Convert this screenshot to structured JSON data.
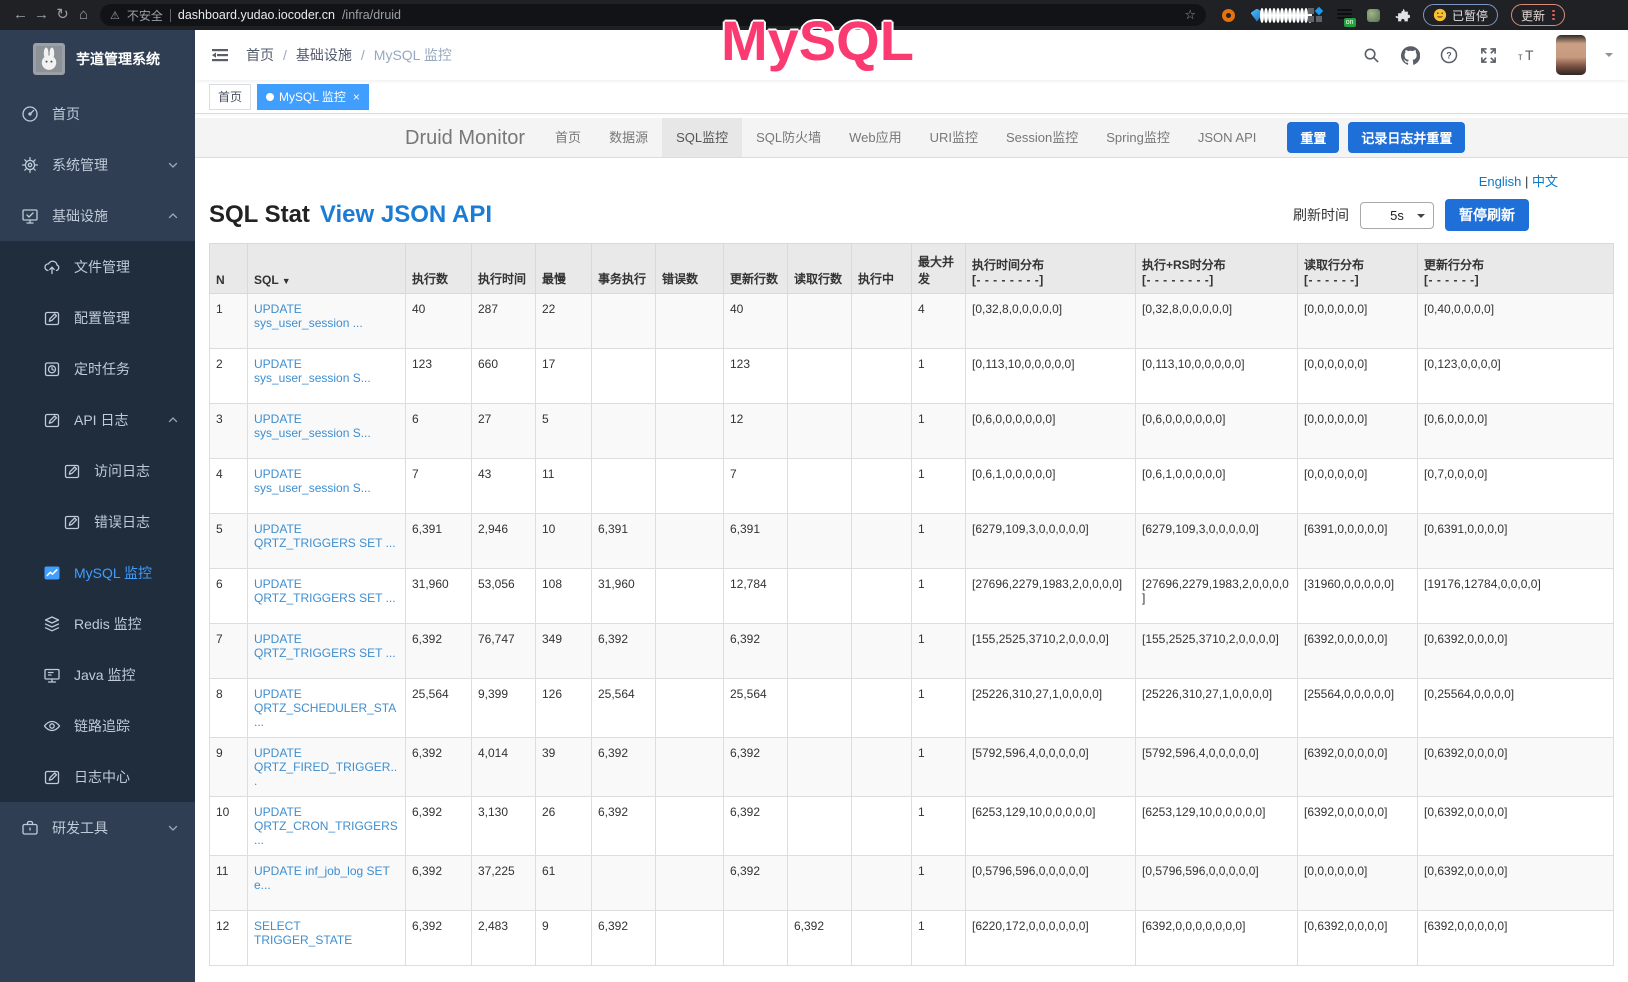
{
  "browser": {
    "security_label": "不安全",
    "url_host": "dashboard.yudao.iocoder.cn",
    "url_path": "/infra/druid",
    "paused_badge": "已暂停",
    "update_button": "更新"
  },
  "annotation": {
    "text": "MySQL",
    "color": "#fb3a72"
  },
  "sidebar": {
    "logo_title": "芋道管理系统",
    "items": [
      {
        "key": "home",
        "label": "首页",
        "icon": "dashboard-icon",
        "level": 0,
        "section": "light"
      },
      {
        "key": "system-management",
        "label": "系统管理",
        "icon": "gear-icon",
        "level": 0,
        "chevron": "down",
        "section": "light"
      },
      {
        "key": "infrastructure",
        "label": "基础设施",
        "icon": "monitor-check-icon",
        "level": 0,
        "chevron": "up",
        "section": "light"
      },
      {
        "key": "file-management",
        "label": "文件管理",
        "icon": "cloud-upload-icon",
        "level": 1,
        "section": "dark"
      },
      {
        "key": "config-management",
        "label": "配置管理",
        "icon": "edit-icon",
        "level": 1,
        "section": "dark"
      },
      {
        "key": "scheduled-jobs",
        "label": "定时任务",
        "icon": "timer-icon",
        "level": 1,
        "section": "dark"
      },
      {
        "key": "api-logs",
        "label": "API 日志",
        "icon": "edit-icon",
        "level": 1,
        "chevron": "up",
        "section": "dark"
      },
      {
        "key": "access-log",
        "label": "访问日志",
        "icon": "edit-icon",
        "level": 2,
        "section": "dark"
      },
      {
        "key": "error-log",
        "label": "错误日志",
        "icon": "edit-icon",
        "level": 2,
        "section": "dark"
      },
      {
        "key": "mysql-monitor",
        "label": "MySQL 监控",
        "icon": "chart-icon",
        "level": 1,
        "active": true,
        "section": "dark"
      },
      {
        "key": "redis-monitor",
        "label": "Redis 监控",
        "icon": "layers-icon",
        "level": 1,
        "section": "dark"
      },
      {
        "key": "java-monitor",
        "label": "Java 监控",
        "icon": "display-icon",
        "level": 1,
        "section": "dark"
      },
      {
        "key": "trace",
        "label": "链路追踪",
        "icon": "eye-icon",
        "level": 1,
        "section": "dark"
      },
      {
        "key": "log-center",
        "label": "日志中心",
        "icon": "edit-icon",
        "level": 1,
        "section": "dark"
      },
      {
        "key": "dev-tools",
        "label": "研发工具",
        "icon": "briefcase-icon",
        "level": 0,
        "chevron": "down",
        "section": "light"
      }
    ]
  },
  "topbar": {
    "breadcrumb": [
      {
        "label": "首页"
      },
      {
        "label": "基础设施"
      },
      {
        "label": "MySQL 监控",
        "current": true
      }
    ]
  },
  "tags": [
    {
      "key": "home",
      "label": "首页",
      "active": false,
      "closable": false
    },
    {
      "key": "mysql-monitor",
      "label": "MySQL 监控",
      "active": true,
      "closable": true
    }
  ],
  "druid": {
    "brand": "Druid Monitor",
    "nav": [
      {
        "key": "home",
        "label": "首页"
      },
      {
        "key": "datasource",
        "label": "数据源"
      },
      {
        "key": "sql-monitor",
        "label": "SQL监控",
        "active": true
      },
      {
        "key": "sql-firewall",
        "label": "SQL防火墙"
      },
      {
        "key": "web-app",
        "label": "Web应用"
      },
      {
        "key": "uri-monitor",
        "label": "URI监控"
      },
      {
        "key": "session-monitor",
        "label": "Session监控"
      },
      {
        "key": "spring-monitor",
        "label": "Spring监控"
      },
      {
        "key": "json-api",
        "label": "JSON API"
      }
    ],
    "reset_button": "重置",
    "log_reset_button": "记录日志并重置",
    "lang_links": [
      "English",
      "中文"
    ],
    "title": "SQL Stat",
    "title_link": "View JSON API",
    "refresh_label": "刷新时间",
    "refresh_value": "5s",
    "pause_button": "暂停刷新"
  },
  "table": {
    "headers": [
      {
        "key": "n",
        "label": "N"
      },
      {
        "key": "sql",
        "label": "SQL",
        "sort": "▼"
      },
      {
        "key": "exec_count",
        "label": "执行数"
      },
      {
        "key": "exec_time",
        "label": "执行时间"
      },
      {
        "key": "slowest",
        "label": "最慢"
      },
      {
        "key": "tx_exec",
        "label": "事务执行"
      },
      {
        "key": "error_count",
        "label": "错误数"
      },
      {
        "key": "update_rows",
        "label": "更新行数"
      },
      {
        "key": "fetch_rows",
        "label": "读取行数"
      },
      {
        "key": "running",
        "label": "执行中"
      },
      {
        "key": "max_concurrent",
        "label": "最大并发"
      },
      {
        "key": "exec_time_dist",
        "label": "执行时间分布",
        "sub": "[- - - - - - - -]"
      },
      {
        "key": "exec_rs_dist",
        "label": "执行+RS时分布",
        "sub": "[- - - - - - - -]"
      },
      {
        "key": "fetch_row_dist",
        "label": "读取行分布",
        "sub": "[- - - - - -]"
      },
      {
        "key": "update_row_dist",
        "label": "更新行分布",
        "sub": "[- - - - - -]"
      }
    ],
    "rows": [
      [
        "1",
        "UPDATE sys_user_session ...",
        "40",
        "287",
        "22",
        "",
        "",
        "40",
        "",
        "",
        "4",
        "[0,32,8,0,0,0,0,0]",
        "[0,32,8,0,0,0,0,0]",
        "[0,0,0,0,0,0]",
        "[0,40,0,0,0,0]"
      ],
      [
        "2",
        "UPDATE sys_user_session S...",
        "123",
        "660",
        "17",
        "",
        "",
        "123",
        "",
        "",
        "1",
        "[0,113,10,0,0,0,0,0]",
        "[0,113,10,0,0,0,0,0]",
        "[0,0,0,0,0,0]",
        "[0,123,0,0,0,0]"
      ],
      [
        "3",
        "UPDATE sys_user_session S...",
        "6",
        "27",
        "5",
        "",
        "",
        "12",
        "",
        "",
        "1",
        "[0,6,0,0,0,0,0,0]",
        "[0,6,0,0,0,0,0,0]",
        "[0,0,0,0,0,0]",
        "[0,6,0,0,0,0]"
      ],
      [
        "4",
        "UPDATE sys_user_session S...",
        "7",
        "43",
        "11",
        "",
        "",
        "7",
        "",
        "",
        "1",
        "[0,6,1,0,0,0,0,0]",
        "[0,6,1,0,0,0,0,0]",
        "[0,0,0,0,0,0]",
        "[0,7,0,0,0,0]"
      ],
      [
        "5",
        "UPDATE QRTZ_TRIGGERS SET ...",
        "6,391",
        "2,946",
        "10",
        "6,391",
        "",
        "6,391",
        "",
        "",
        "1",
        "[6279,109,3,0,0,0,0,0]",
        "[6279,109,3,0,0,0,0,0]",
        "[6391,0,0,0,0,0]",
        "[0,6391,0,0,0,0]"
      ],
      [
        "6",
        "UPDATE QRTZ_TRIGGERS SET ...",
        "31,960",
        "53,056",
        "108",
        "31,960",
        "",
        "12,784",
        "",
        "",
        "1",
        "[27696,2279,1983,2,0,0,0,0]",
        "[27696,2279,1983,2,0,0,0,0]",
        "[31960,0,0,0,0,0]",
        "[19176,12784,0,0,0,0]"
      ],
      [
        "7",
        "UPDATE QRTZ_TRIGGERS SET ...",
        "6,392",
        "76,747",
        "349",
        "6,392",
        "",
        "6,392",
        "",
        "",
        "1",
        "[155,2525,3710,2,0,0,0,0]",
        "[155,2525,3710,2,0,0,0,0]",
        "[6392,0,0,0,0,0]",
        "[0,6392,0,0,0,0]"
      ],
      [
        "8",
        "UPDATE QRTZ_SCHEDULER_STA...",
        "25,564",
        "9,399",
        "126",
        "25,564",
        "",
        "25,564",
        "",
        "",
        "1",
        "[25226,310,27,1,0,0,0,0]",
        "[25226,310,27,1,0,0,0,0]",
        "[25564,0,0,0,0,0]",
        "[0,25564,0,0,0,0]"
      ],
      [
        "9",
        "UPDATE QRTZ_FIRED_TRIGGER...",
        "6,392",
        "4,014",
        "39",
        "6,392",
        "",
        "6,392",
        "",
        "",
        "1",
        "[5792,596,4,0,0,0,0,0]",
        "[5792,596,4,0,0,0,0,0]",
        "[6392,0,0,0,0,0]",
        "[0,6392,0,0,0,0]"
      ],
      [
        "10",
        "UPDATE QRTZ_CRON_TRIGGERS...",
        "6,392",
        "3,130",
        "26",
        "6,392",
        "",
        "6,392",
        "",
        "",
        "1",
        "[6253,129,10,0,0,0,0,0]",
        "[6253,129,10,0,0,0,0,0]",
        "[6392,0,0,0,0,0]",
        "[0,6392,0,0,0,0]"
      ],
      [
        "11",
        "UPDATE inf_job_log SET e...",
        "6,392",
        "37,225",
        "61",
        "",
        "",
        "6,392",
        "",
        "",
        "1",
        "[0,5796,596,0,0,0,0,0]",
        "[0,5796,596,0,0,0,0,0]",
        "[0,0,0,0,0,0]",
        "[0,6392,0,0,0,0]"
      ],
      [
        "12",
        "SELECT TRIGGER_STATE",
        "6,392",
        "2,483",
        "9",
        "6,392",
        "",
        "",
        "6,392",
        "",
        "1",
        "[6220,172,0,0,0,0,0,0]",
        "[6392,0,0,0,0,0,0,0]",
        "[0,6392,0,0,0,0]",
        "[6392,0,0,0,0,0]"
      ]
    ]
  }
}
